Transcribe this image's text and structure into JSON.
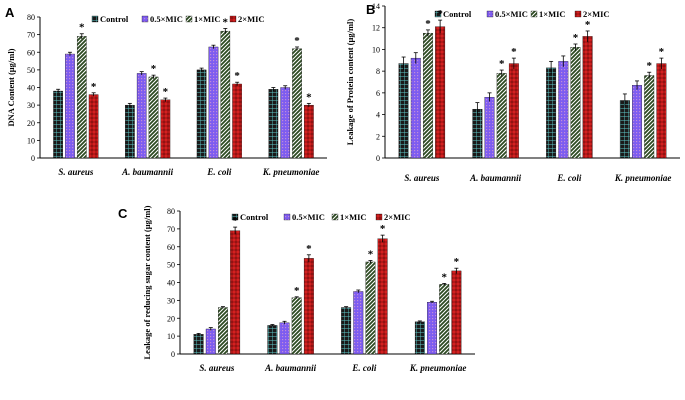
{
  "figure": {
    "legend": [
      "Control",
      "0.5×MIC",
      "1×MIC",
      "2×MIC"
    ],
    "colors": {
      "control": "#1a1a1a",
      "control_line": "#5fc9c9",
      "half_mic": "#7d5cf0",
      "half_mic_line": "#c08bd8",
      "one_mic": "#2d4a22",
      "one_mic_line": "#ffffff",
      "two_mic": "#d42020",
      "two_mic_dot": "#5a0808"
    }
  },
  "chart_data": [
    {
      "panel": "A",
      "type": "bar",
      "ylabel": "DNA Content (μg/ml)",
      "categories": [
        "S. aureus",
        "A. baumannii",
        "E. coli",
        "K. pneumoniae"
      ],
      "ylim": [
        0,
        80
      ],
      "yticks": [
        0,
        10,
        20,
        30,
        40,
        50,
        60,
        70,
        80
      ],
      "series": [
        {
          "name": "Control",
          "values": [
            38,
            30,
            50,
            39
          ],
          "errors": [
            1,
            1,
            1,
            1
          ]
        },
        {
          "name": "0.5×MIC",
          "values": [
            59,
            48,
            63,
            40
          ],
          "errors": [
            1,
            1,
            1,
            1
          ]
        },
        {
          "name": "1×MIC",
          "values": [
            69,
            46,
            72,
            62
          ],
          "errors": [
            1.5,
            1,
            1.5,
            1
          ]
        },
        {
          "name": "2×MIC",
          "values": [
            36,
            33,
            42,
            30
          ],
          "errors": [
            1,
            1,
            1,
            1
          ]
        }
      ],
      "significant": [
        [
          false,
          false,
          true,
          true
        ],
        [
          false,
          false,
          true,
          true
        ],
        [
          false,
          false,
          true,
          true
        ],
        [
          false,
          false,
          true,
          true
        ]
      ]
    },
    {
      "panel": "B",
      "type": "bar",
      "ylabel": "Leakage of Protein content  (μg/ml)",
      "categories": [
        "S. aureus",
        "A. baumannii",
        "E. coli",
        "K. pneumoniae"
      ],
      "ylim": [
        0,
        14
      ],
      "yticks": [
        0,
        2,
        4,
        6,
        8,
        10,
        12,
        14
      ],
      "series": [
        {
          "name": "Control",
          "values": [
            8.7,
            4.5,
            8.3,
            5.3
          ],
          "errors": [
            0.6,
            0.6,
            0.6,
            0.6
          ]
        },
        {
          "name": "0.5×MIC",
          "values": [
            9.2,
            5.6,
            8.9,
            6.7
          ],
          "errors": [
            0.5,
            0.4,
            0.5,
            0.4
          ]
        },
        {
          "name": "1×MIC",
          "values": [
            11.5,
            7.8,
            10.2,
            7.6
          ],
          "errors": [
            0.3,
            0.3,
            0.3,
            0.3
          ]
        },
        {
          "name": "2×MIC",
          "values": [
            12.1,
            8.7,
            11.2,
            8.7
          ],
          "errors": [
            0.6,
            0.5,
            0.5,
            0.5
          ]
        }
      ],
      "significant": [
        [
          false,
          false,
          true,
          true
        ],
        [
          false,
          false,
          true,
          true
        ],
        [
          false,
          false,
          true,
          true
        ],
        [
          false,
          false,
          true,
          true
        ]
      ]
    },
    {
      "panel": "C",
      "type": "bar",
      "ylabel": "Leakage of reducing sugar content (μg/ml)",
      "categories": [
        "S. aureus",
        "A. baumannii",
        "E. coli",
        "K. pneumoniae"
      ],
      "ylim": [
        0,
        80
      ],
      "yticks": [
        0,
        10,
        20,
        30,
        40,
        50,
        60,
        70,
        80
      ],
      "series": [
        {
          "name": "Control",
          "values": [
            11,
            16,
            26,
            18
          ],
          "errors": [
            0.5,
            0.5,
            0.5,
            0.5
          ]
        },
        {
          "name": "0.5×MIC",
          "values": [
            14,
            17.5,
            35,
            29
          ],
          "errors": [
            0.8,
            0.8,
            0.8,
            0.5
          ]
        },
        {
          "name": "1×MIC",
          "values": [
            26,
            31.5,
            51.5,
            39
          ],
          "errors": [
            0.5,
            0.5,
            0.8,
            0.5
          ]
        },
        {
          "name": "2×MIC",
          "values": [
            69,
            53.5,
            64.5,
            46.5
          ],
          "errors": [
            2,
            2,
            2,
            1.5
          ]
        }
      ],
      "significant": [
        [
          false,
          false,
          false,
          true
        ],
        [
          false,
          false,
          true,
          true
        ],
        [
          false,
          false,
          true,
          true
        ],
        [
          false,
          false,
          true,
          true
        ]
      ]
    }
  ]
}
